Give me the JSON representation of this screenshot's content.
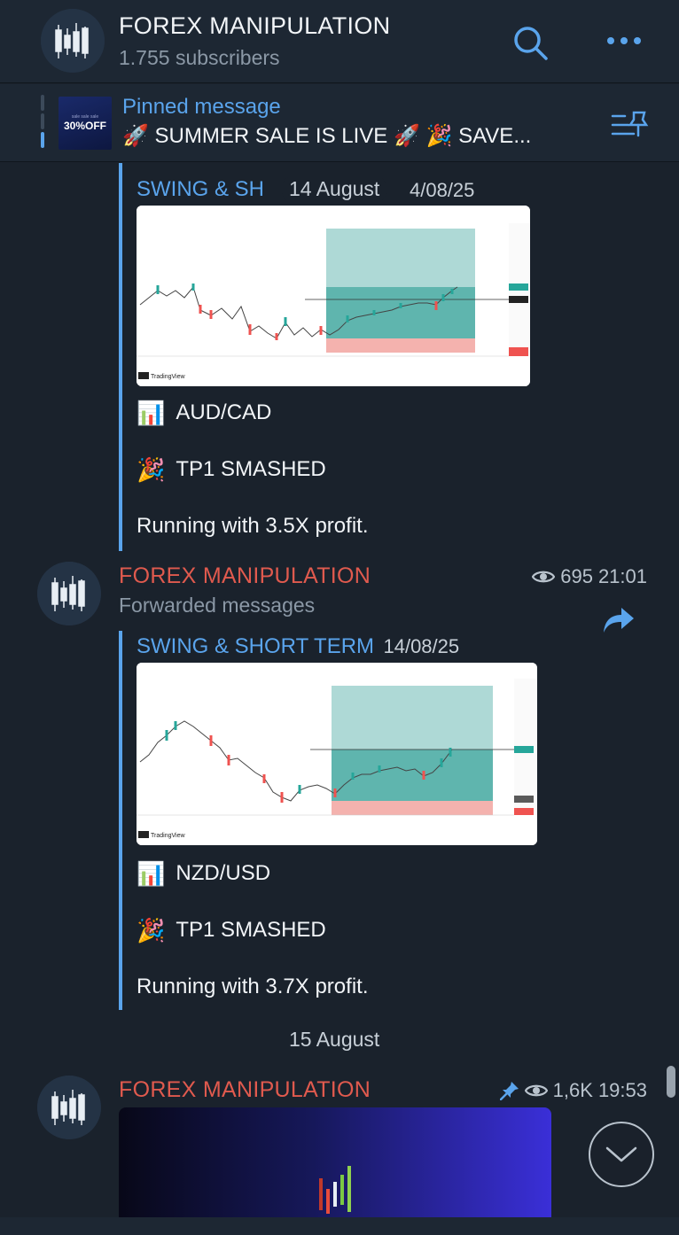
{
  "header": {
    "title": "FOREX MANIPULATION",
    "subscribers": "1.755 subscribers",
    "search_icon": "search-icon",
    "more_icon": "more-icon"
  },
  "pinned": {
    "label": "Pinned message",
    "text": "🚀 SUMMER SALE IS LIVE 🚀 🎉 SAVE...",
    "thumb_small": "sale sale sale",
    "thumb_big": "30%OFF",
    "list_icon": "pin-list-icon"
  },
  "messages": [
    {
      "forward_name": "SWING & SH",
      "forward_date": "4/08/25",
      "floating_date": "14 August",
      "chart_caption": "TradingView",
      "pair": "AUD/CAD",
      "status": "TP1 SMASHED",
      "profit": "Running with 3.5X profit."
    },
    {
      "sender": "FOREX MANIPULATION",
      "subtitle": "Forwarded messages",
      "views": "695",
      "time": "21:01",
      "forward_name": "SWING & SHORT TERM",
      "forward_date": "14/08/25",
      "chart_caption": "TradingView",
      "pair": "NZD/USD",
      "status": "TP1 SMASHED",
      "profit": "Running with 3.7X profit."
    },
    {
      "sender": "FOREX MANIPULATION",
      "views": "1,6K",
      "time": "19:53"
    }
  ],
  "date_separator": "15 August",
  "emoji": {
    "chart": "📊",
    "party": "🎉"
  },
  "colors": {
    "accent": "#5aa4ec",
    "sender": "#e05a4e",
    "background": "#1a222c"
  }
}
